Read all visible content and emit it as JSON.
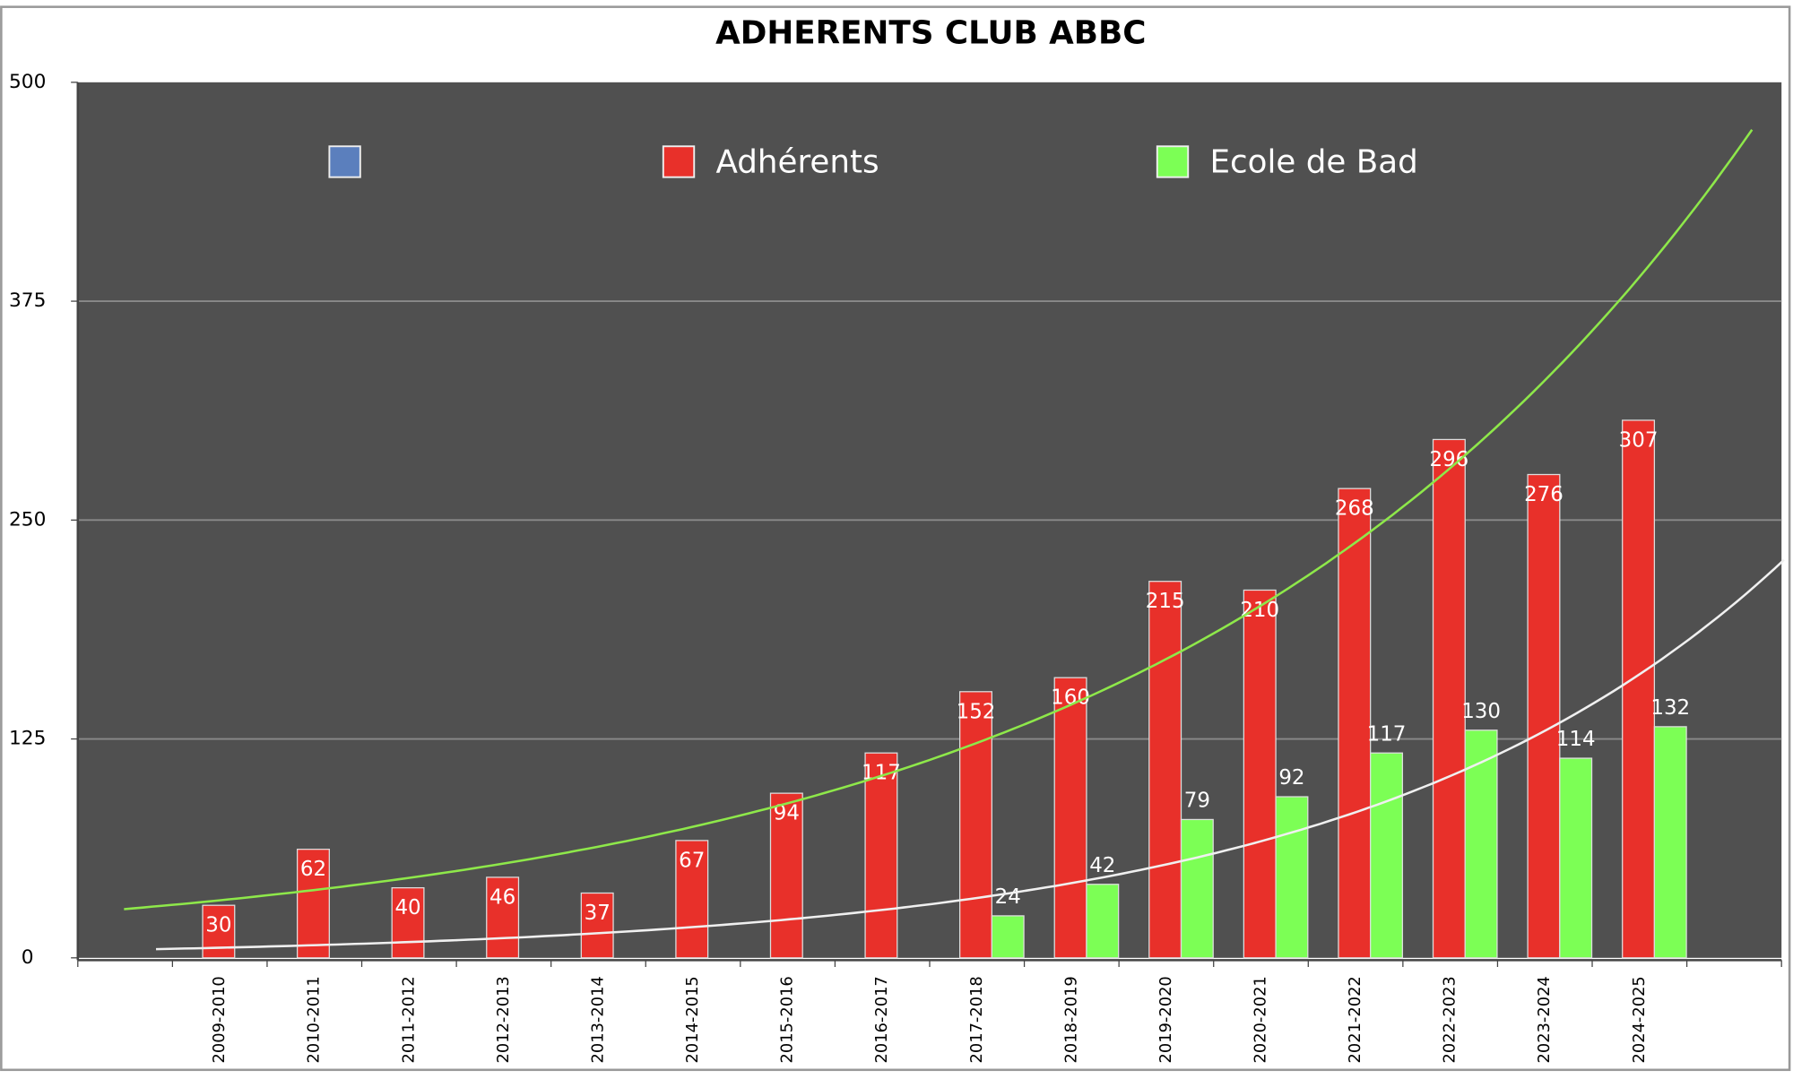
{
  "chart_data": {
    "type": "bar",
    "title": "ADHERENTS CLUB ABBC",
    "categories": [
      "2009-2010",
      "2010-2011",
      "2011-2012",
      "2012-2013",
      "2013-2014",
      "2014-2015",
      "2015-2016",
      "2016-2017",
      "2017-2018",
      "2018-2019",
      "2019-2020",
      "2020-2021",
      "2021-2022",
      "2022-2023",
      "2023-2024",
      "2024-2025"
    ],
    "series": [
      {
        "color": "#5b7fbd",
        "values": [
          null,
          null,
          null,
          null,
          null,
          null,
          null,
          null,
          null,
          null,
          null,
          null,
          null,
          null,
          null,
          null
        ]
      },
      {
        "name": "Adhérents",
        "color": "#e8302a",
        "trendline": "exponential",
        "trendline_color": "#8ee84a",
        "values": [
          30,
          62,
          40,
          46,
          37,
          67,
          94,
          117,
          152,
          160,
          215,
          210,
          268,
          296,
          276,
          307
        ]
      },
      {
        "name": "Ecole de Bad",
        "color": "#7cff55",
        "trendline": "exponential",
        "trendline_color": "#f0f0f0",
        "values": [
          null,
          null,
          null,
          null,
          null,
          null,
          null,
          null,
          24,
          42,
          79,
          92,
          117,
          130,
          114,
          132
        ]
      }
    ],
    "ylim": [
      0,
      500
    ],
    "yticks": [
      0,
      125,
      250,
      375,
      500
    ],
    "grid": true,
    "legend": "top"
  }
}
